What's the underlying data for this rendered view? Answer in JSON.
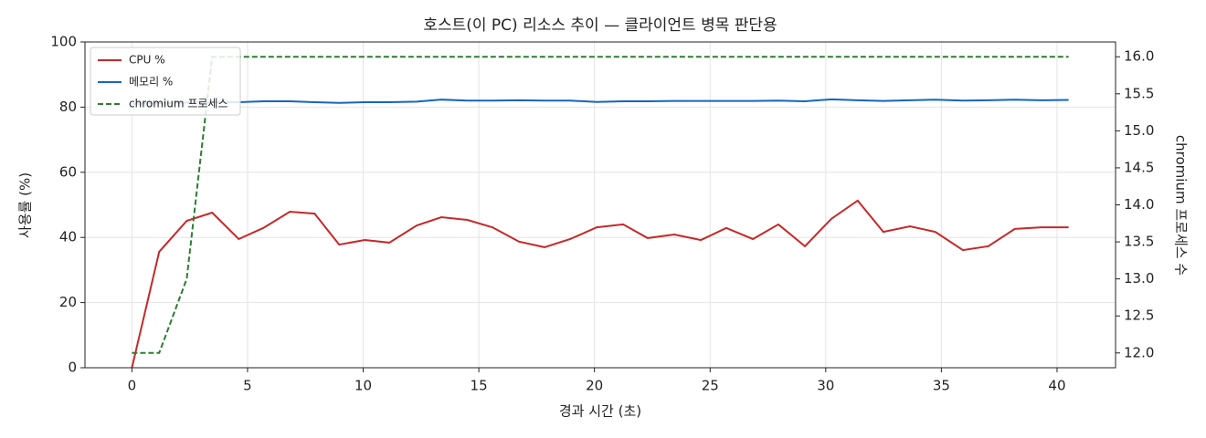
{
  "chart_data": {
    "type": "line",
    "title": "호스트(이 PC) 리소스 추이 — 클라이언트 병목 판단용",
    "xlabel": "경과 시간 (초)",
    "ylabel": "사용률 (%)",
    "y2label": "chromium 프로세스 수",
    "x": [
      0,
      1.18,
      2.37,
      3.47,
      4.62,
      5.68,
      6.83,
      7.9,
      8.96,
      10.07,
      11.13,
      12.32,
      13.38,
      14.49,
      15.59,
      16.74,
      17.84,
      18.95,
      20.1,
      21.24,
      22.3,
      23.45,
      24.6,
      25.7,
      26.85,
      27.95,
      29.1,
      30.24,
      31.38,
      32.49,
      33.64,
      34.74,
      35.93,
      37.03,
      38.17,
      39.32,
      40.5
    ],
    "series": [
      {
        "name": "CPU %",
        "color": "#c62828",
        "dash": false,
        "axis": "y",
        "values": [
          0,
          35.6,
          45.1,
          47.6,
          39.5,
          42.9,
          47.9,
          47.3,
          37.8,
          39.2,
          38.4,
          43.7,
          46.2,
          45.4,
          43.1,
          38.7,
          37.0,
          39.5,
          43.1,
          44.0,
          39.8,
          40.9,
          39.2,
          42.9,
          39.5,
          44.0,
          37.3,
          45.7,
          51.3,
          41.7,
          43.4,
          41.7,
          36.1,
          37.3,
          42.6,
          43.1,
          43.1
        ]
      },
      {
        "name": "메모리 %",
        "color": "#1565c0",
        "dash": false,
        "axis": "y",
        "values": [
          81.0,
          81.2,
          81.4,
          81.5,
          81.5,
          81.8,
          81.8,
          81.5,
          81.3,
          81.5,
          81.5,
          81.7,
          82.3,
          82.0,
          82.0,
          82.1,
          82.0,
          82.0,
          81.6,
          81.8,
          81.8,
          81.9,
          81.9,
          81.9,
          81.9,
          82.0,
          81.8,
          82.4,
          82.1,
          81.9,
          82.1,
          82.3,
          82.0,
          82.1,
          82.3,
          82.1,
          82.2
        ]
      },
      {
        "name": "chromium 프로세스",
        "color": "#2e7d32",
        "dash": true,
        "axis": "y2",
        "values": [
          12,
          12,
          13,
          16,
          16,
          16,
          16,
          16,
          16,
          16,
          16,
          16,
          16,
          16,
          16,
          16,
          16,
          16,
          16,
          16,
          16,
          16,
          16,
          16,
          16,
          16,
          16,
          16,
          16,
          16,
          16,
          16,
          16,
          16,
          16,
          16,
          16
        ]
      }
    ],
    "xlim": [
      -2.03,
      42.53
    ],
    "xticks": [
      0,
      5,
      10,
      15,
      20,
      25,
      30,
      35,
      40
    ],
    "ylim": [
      0,
      100
    ],
    "yticks": [
      0,
      20,
      40,
      60,
      80,
      100
    ],
    "y2lim": [
      11.8,
      16.2
    ],
    "y2ticks": [
      {
        "value": 12,
        "label": "12.0"
      },
      {
        "value": 12.5,
        "label": "12.5"
      },
      {
        "value": 13,
        "label": "13.0"
      },
      {
        "value": 13.5,
        "label": "13.5"
      },
      {
        "value": 14,
        "label": "14.0"
      },
      {
        "value": 14.5,
        "label": "14.5"
      },
      {
        "value": 15,
        "label": "15.0"
      },
      {
        "value": 15.5,
        "label": "15.5"
      },
      {
        "value": 16,
        "label": "16.0"
      }
    ],
    "grid": true,
    "legend": "upper left"
  }
}
